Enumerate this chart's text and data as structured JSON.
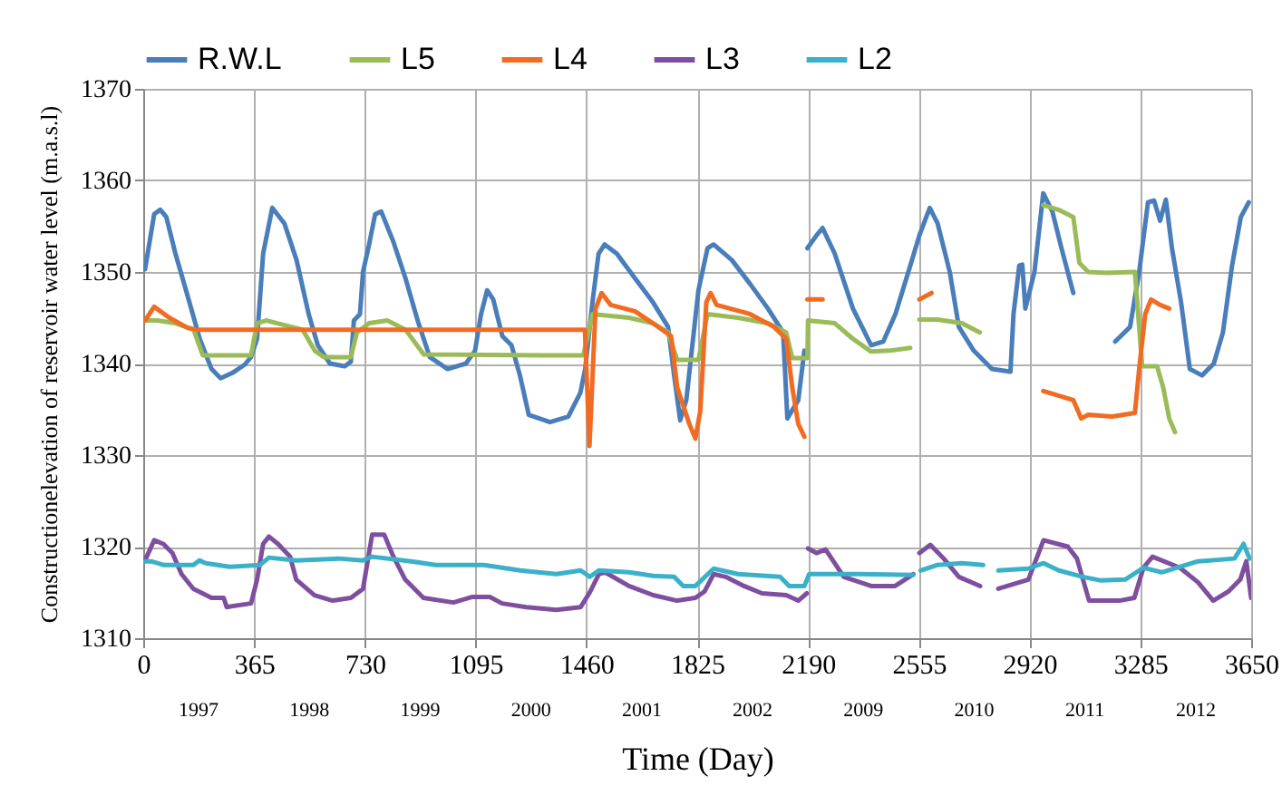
{
  "chart_data": {
    "type": "line",
    "xlabel": "Time (Day)",
    "ylabel": "Constructionelevation of reservoir water level (m.a.s.l)",
    "xlim": [
      0,
      3650
    ],
    "xticks": [
      0,
      365,
      730,
      1095,
      1460,
      1825,
      2190,
      2555,
      2920,
      3285,
      3650
    ],
    "ylim": [
      1310,
      1370
    ],
    "yticks": [
      1310,
      1320,
      1330,
      1340,
      1350,
      1360,
      1370
    ],
    "grid": true,
    "legend": "top",
    "annotations": [
      "1997",
      "1998",
      "1999",
      "2000",
      "2001",
      "2002",
      "2009",
      "2010",
      "2011",
      "2012"
    ],
    "series": [
      {
        "name": "R.W.L",
        "color": "#4a7ebb",
        "x": [
          6,
          36,
          56,
          76,
          106,
          146,
          186,
          225,
          255,
          295,
          335,
          355,
          375,
          395,
          425,
          465,
          505,
          545,
          575,
          615,
          664,
          684,
          694,
          714,
          724,
          744,
          764,
          784,
          824,
          864,
          904,
          944,
          1003,
          1063,
          1093,
          1113,
          1133,
          1153,
          1183,
          1213,
          1241,
          1270,
          1340,
          1400,
          1440,
          1456,
          1480,
          1500,
          1520,
          1560,
          1620,
          1679,
          1729,
          1749,
          1769,
          1789,
          1809,
          1829,
          1859,
          1879,
          1939,
          1999,
          2058,
          2108,
          2122,
          2158,
          2178,
          2183,
          2188,
          2218,
          2238,
          2278,
          2338,
          2398,
          2438,
          2478,
          2527,
          2557,
          2591,
          2617,
          2657,
          2687,
          2736,
          2796,
          2857,
          2867,
          2886,
          2896,
          2906,
          2936,
          2965,
          2995,
          3025,
          3064,
          3130,
          3202,
          3251,
          3281,
          3310,
          3330,
          3350,
          3369,
          3389,
          3419,
          3448,
          3488,
          3527,
          3557,
          3587,
          3616,
          3642
        ],
        "values": [
          1350.3,
          1356.3,
          1356.8,
          1356,
          1352,
          1347.4,
          1342.7,
          1339.4,
          1338.4,
          1339,
          1339.9,
          1340.7,
          1342.7,
          1352,
          1357,
          1355.3,
          1351.3,
          1345.4,
          1342,
          1340,
          1339.7,
          1340.2,
          1344.7,
          1345.4,
          1350,
          1353,
          1356.3,
          1356.6,
          1353.3,
          1349.3,
          1344.7,
          1340.7,
          1339.4,
          1340,
          1341.4,
          1345.4,
          1348,
          1347,
          1343,
          1342,
          1338.7,
          1334.4,
          1333.6,
          1334.2,
          1336.8,
          1339.4,
          1346.7,
          1352,
          1353,
          1352,
          1349.3,
          1346.7,
          1344,
          1338.7,
          1333.8,
          1336,
          1342,
          1348,
          1352.6,
          1353,
          1351.3,
          1348.7,
          1346,
          1343.4,
          1334,
          1336,
          1341.4,
          null,
          1352.6,
          1354,
          1354.8,
          1352,
          1346,
          1342,
          1342.4,
          1345.4,
          1350.7,
          1354,
          1357,
          1355.3,
          1350,
          1344,
          1341.4,
          1339.4,
          1339.1,
          1345.4,
          1350.7,
          1350.8,
          1346,
          1350,
          1358.6,
          1356.6,
          1352.6,
          1347.7,
          null,
          1342.4,
          1344,
          1350,
          1357.6,
          1357.8,
          1355.6,
          1357.9,
          1352.6,
          1346.7,
          1339.4,
          1338.7,
          1340,
          1343.4,
          1350.7,
          1356,
          1357.6
        ]
      },
      {
        "name": "L5",
        "color": "#9bbb59",
        "x": [
          6,
          46,
          106,
          166,
          196,
          215,
          355,
          375,
          405,
          465,
          525,
          565,
          595,
          684,
          704,
          744,
          804,
          864,
          924,
          1323,
          1450,
          1480,
          1600,
          1679,
          1729,
          1759,
          1829,
          1859,
          1959,
          2058,
          2118,
          2138,
          2188,
          2190,
          2278,
          2338,
          2398,
          2458,
          2527,
          2542,
          2557,
          2617,
          2697,
          2756,
          2860,
          2965,
          3015,
          3064,
          3084,
          3113,
          3173,
          3267,
          3281,
          3291,
          3340,
          3360,
          3380,
          3399
        ],
        "values": [
          1344.7,
          1344.7,
          1344.4,
          1343.7,
          1340.9,
          1340.9,
          1340.9,
          1344.4,
          1344.7,
          1344.2,
          1343.7,
          1341.4,
          1340.7,
          1340.7,
          1343.4,
          1344.4,
          1344.7,
          1343.7,
          1341,
          1340.9,
          1340.9,
          1345.4,
          1345,
          1344.4,
          1343.4,
          1340.4,
          1340.4,
          1345.4,
          1345,
          1344.4,
          1343.4,
          1340.6,
          1340.6,
          1344.7,
          1344.4,
          1342.7,
          1341.3,
          1341.4,
          1341.7,
          null,
          1344.8,
          1344.8,
          1344.4,
          1343.4,
          null,
          1357.3,
          1356.8,
          1356,
          1351,
          1350,
          1349.9,
          1350,
          1344,
          1339.7,
          1339.7,
          1337.4,
          1334,
          1332.5
        ]
      },
      {
        "name": "L4",
        "color": "#f26b22",
        "x": [
          6,
          36,
          86,
          146,
          176,
          1323,
          1455,
          1470,
          1490,
          1510,
          1540,
          1620,
          1679,
          1739,
          1759,
          1799,
          1819,
          1835,
          1855,
          1869,
          1889,
          1999,
          2078,
          2118,
          2138,
          2158,
          2178,
          2183,
          2188,
          2238,
          2400,
          2557,
          2597,
          2780,
          2965,
          3025,
          3064,
          3090,
          3113,
          3192,
          3267,
          3281,
          3301,
          3320,
          3350,
          3380
        ],
        "values": [
          1344.7,
          1346.2,
          1345,
          1343.9,
          1343.7,
          1343.7,
          1343.7,
          1331,
          1346,
          1347.7,
          1346.4,
          1345.7,
          1344.4,
          1343,
          1337.4,
          1333.4,
          1331.8,
          1334.8,
          1346.7,
          1347.7,
          1346.4,
          1345.4,
          1344,
          1342.7,
          1337.4,
          1333.4,
          1332,
          null,
          1347,
          1347,
          null,
          1347,
          1347.7,
          null,
          1337,
          1336.4,
          1336,
          1334,
          1334.4,
          1334.2,
          1334.6,
          1339.4,
          1345.4,
          1347,
          1346.4,
          1346
        ]
      },
      {
        "name": "L3",
        "color": "#7f4f9f",
        "x": [
          6,
          36,
          66,
          96,
          126,
          165,
          225,
          265,
          275,
          355,
          375,
          395,
          414,
          444,
          484,
          504,
          564,
          624,
          684,
          724,
          754,
          794,
          823,
          863,
          923,
          1022,
          1082,
          1142,
          1182,
          1262,
          1361,
          1441,
          1471,
          1501,
          1521,
          1600,
          1680,
          1759,
          1819,
          1849,
          1879,
          1919,
          1979,
          2038,
          2118,
          2158,
          2186,
          2188,
          2190,
          2218,
          2248,
          2308,
          2398,
          2477,
          2537,
          2547,
          2557,
          2593,
          2637,
          2687,
          2757,
          2787,
          2817,
          2916,
          2966,
          3046,
          3076,
          3116,
          3216,
          3265,
          3295,
          3325,
          3415,
          3475,
          3525,
          3575,
          3614,
          3634,
          3650
        ],
        "values": [
          1318.5,
          1320.7,
          1320.3,
          1319.3,
          1317,
          1315.4,
          1314.4,
          1314.4,
          1313.4,
          1313.8,
          1316.4,
          1320.3,
          1321.1,
          1320.3,
          1318.9,
          1316.4,
          1314.7,
          1314.1,
          1314.4,
          1315.4,
          1321.3,
          1321.3,
          1319,
          1316.4,
          1314.4,
          1313.9,
          1314.5,
          1314.5,
          1313.8,
          1313.4,
          1313.1,
          1313.4,
          1315,
          1317,
          1317.2,
          1315.7,
          1314.7,
          1314.1,
          1314.4,
          1315.1,
          1317,
          1316.7,
          1315.7,
          1314.9,
          1314.7,
          1314.1,
          1314.9,
          null,
          1319.8,
          1319.3,
          1319.7,
          1316.7,
          1315.7,
          1315.7,
          1317,
          null,
          1319.3,
          1320.2,
          1318.7,
          1316.7,
          1315.7,
          null,
          1315.4,
          1316.4,
          1320.7,
          1320,
          1318.7,
          1314.1,
          1314.1,
          1314.4,
          1317.7,
          1318.9,
          1317.7,
          1316.1,
          1314.1,
          1315.1,
          1316.4,
          1318.4,
          1314.4
        ]
      },
      {
        "name": "L2",
        "color": "#3bb0c9",
        "x": [
          6,
          26,
          66,
          165,
          185,
          205,
          285,
          385,
          414,
          504,
          644,
          723,
          753,
          883,
          963,
          1122,
          1242,
          1361,
          1441,
          1471,
          1501,
          1600,
          1680,
          1749,
          1779,
          1819,
          1879,
          1959,
          2098,
          2128,
          2178,
          2194,
          2357,
          2537,
          2549,
          2561,
          2617,
          2697,
          2767,
          2792,
          2817,
          2916,
          2966,
          3016,
          3096,
          3156,
          3235,
          3295,
          3355,
          3475,
          3595,
          3625,
          3645
        ],
        "values": [
          1318.4,
          1318.4,
          1318,
          1318,
          1318.5,
          1318.2,
          1317.8,
          1318,
          1318.8,
          1318.5,
          1318.7,
          1318.5,
          1318.9,
          1318.4,
          1318,
          1318,
          1317.4,
          1317,
          1317.4,
          1316.7,
          1317.4,
          1317.2,
          1316.8,
          1316.7,
          1315.7,
          1315.7,
          1317.6,
          1317,
          1316.7,
          1315.7,
          1315.7,
          1317,
          1317,
          1316.9,
          null,
          1317.4,
          1318,
          1318.2,
          1318,
          null,
          1317.4,
          1317.6,
          1318.2,
          1317.4,
          1316.7,
          1316.3,
          1316.4,
          1317.7,
          1317.2,
          1318.4,
          1318.7,
          1320.3,
          1318.7
        ]
      }
    ]
  }
}
